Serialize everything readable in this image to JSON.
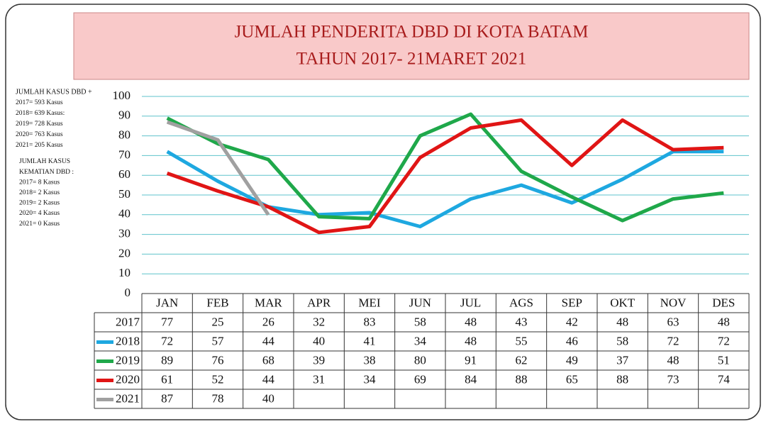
{
  "chart_data": {
    "type": "line",
    "title": "JUMLAH PENDERITA DBD DI KOTA BATAM",
    "subtitle": "TAHUN 2017- 21MARET 2021",
    "categories": [
      "JAN",
      "FEB",
      "MAR",
      "APR",
      "MEI",
      "JUN",
      "JUL",
      "AGS",
      "SEP",
      "OKT",
      "NOV",
      "DES"
    ],
    "series": [
      {
        "name": "2017",
        "values": [
          77,
          25,
          26,
          32,
          83,
          58,
          48,
          43,
          42,
          48,
          63,
          48
        ]
      },
      {
        "name": "2018",
        "color": "#1ea8e0",
        "values": [
          72,
          57,
          44,
          40,
          41,
          34,
          48,
          55,
          46,
          58,
          72,
          72
        ]
      },
      {
        "name": "2019",
        "color": "#1fa84a",
        "values": [
          89,
          76,
          68,
          39,
          38,
          80,
          91,
          62,
          49,
          37,
          48,
          51
        ]
      },
      {
        "name": "2020",
        "color": "#e01515",
        "values": [
          61,
          52,
          44,
          31,
          34,
          69,
          84,
          88,
          65,
          88,
          73,
          74
        ]
      },
      {
        "name": "2021",
        "color": "#a0a0a0",
        "values": [
          87,
          78,
          40,
          null,
          null,
          null,
          null,
          null,
          null,
          null,
          null,
          null
        ]
      }
    ],
    "ylim": [
      0,
      100
    ],
    "yticks": [
      0,
      10,
      20,
      30,
      40,
      50,
      60,
      70,
      80,
      90,
      100
    ],
    "grid": true,
    "notes_cases": [
      "JUMLAH KASUS DBD +",
      "2017= 593 Kasus",
      "2018= 639 Kasus:",
      "2019= 728 Kasus",
      "2020= 763 Kasus",
      "2021= 205 Kasus"
    ],
    "notes_deaths": [
      "JUMLAH KASUS",
      "KEMATIAN DBD :",
      "2017= 8 Kasus",
      "2018= 2 Kasus",
      "2019= 2 Kasus",
      "2020= 4 Kasus",
      "2021= 0 Kasus"
    ]
  }
}
